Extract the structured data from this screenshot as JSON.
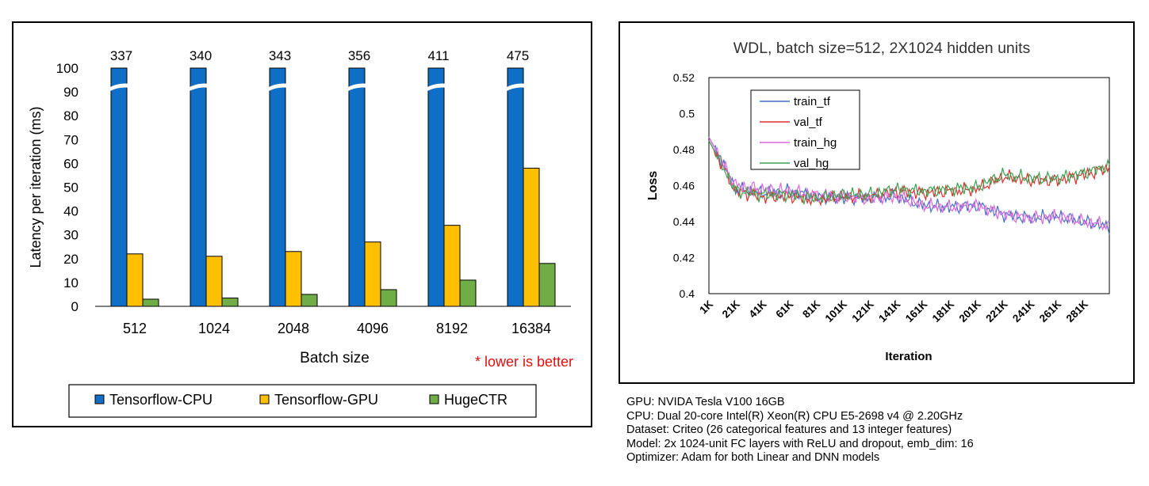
{
  "bar_chart": {
    "ylabel": "Latency per iteration (ms)",
    "xlabel": "Batch size",
    "note": "* lower is better",
    "yticks": [
      "0",
      "10",
      "20",
      "30",
      "40",
      "50",
      "60",
      "70",
      "80",
      "90",
      "100"
    ],
    "legend": [
      "Tensorflow-CPU",
      "Tensorflow-GPU",
      "HugeCTR"
    ]
  },
  "loss_chart": {
    "title": "WDL, batch size=512, 2X1024 hidden units",
    "ylabel": "Loss",
    "xlabel": "Iteration",
    "yticks": [
      "0.4",
      "0.42",
      "0.44",
      "0.46",
      "0.48",
      "0.5",
      "0.52"
    ],
    "xticks": [
      "1K",
      "21K",
      "41K",
      "61K",
      "81K",
      "101K",
      "121K",
      "141K",
      "161K",
      "181K",
      "201K",
      "221K",
      "241K",
      "261K",
      "281K"
    ],
    "legend": [
      "train_tf",
      "val_tf",
      "train_hg",
      "val_hg"
    ]
  },
  "notes": {
    "gpu": "GPU: NVIDA Tesla V100 16GB",
    "cpu": "CPU: Dual 20-core Intel(R) Xeon(R) CPU E5-2698 v4 @ 2.20GHz",
    "dataset": "Dataset: Criteo (26 categorical features and 13 integer features)",
    "model": "Model: 2x 1024-unit FC layers with ReLU and dropout, emb_dim: 16",
    "optimizer": "Optimizer: Adam for both Linear and DNN models"
  },
  "chart_data": [
    {
      "type": "bar",
      "title": "",
      "xlabel": "Batch size",
      "ylabel": "Latency per iteration (ms)",
      "ylim": [
        0,
        100
      ],
      "categories": [
        "512",
        "1024",
        "2048",
        "4096",
        "8192",
        "16384"
      ],
      "series": [
        {
          "name": "Tensorflow-CPU",
          "color": "#0f6fc6",
          "values": [
            337,
            340,
            343,
            356,
            411,
            475
          ],
          "labels": [
            "337",
            "340",
            "343",
            "356",
            "411",
            "475"
          ]
        },
        {
          "name": "Tensorflow-GPU",
          "color": "#ffc000",
          "values": [
            22,
            21,
            23,
            27,
            34,
            58
          ]
        },
        {
          "name": "HugeCTR",
          "color": "#70ad47",
          "values": [
            3,
            3.5,
            5,
            7,
            11,
            18
          ]
        }
      ],
      "axis_break": true
    },
    {
      "type": "line",
      "title": "WDL, batch size=512, 2X1024 hidden units",
      "xlabel": "Iteration",
      "ylabel": "Loss",
      "ylim": [
        0.4,
        0.52
      ],
      "xlim": [
        1000,
        300000
      ],
      "x": [
        1000,
        21000,
        41000,
        61000,
        81000,
        101000,
        121000,
        141000,
        161000,
        181000,
        201000,
        221000,
        241000,
        261000,
        281000,
        300000
      ],
      "series": [
        {
          "name": "train_tf",
          "color": "#4472c4",
          "values": [
            0.487,
            0.458,
            0.456,
            0.457,
            0.454,
            0.453,
            0.453,
            0.454,
            0.449,
            0.448,
            0.449,
            0.444,
            0.442,
            0.443,
            0.44,
            0.437
          ]
        },
        {
          "name": "val_tf",
          "color": "#e03030",
          "values": [
            0.485,
            0.457,
            0.454,
            0.454,
            0.452,
            0.454,
            0.454,
            0.457,
            0.456,
            0.457,
            0.458,
            0.465,
            0.463,
            0.463,
            0.466,
            0.47
          ]
        },
        {
          "name": "train_hg",
          "color": "#e066e0",
          "values": [
            0.487,
            0.46,
            0.458,
            0.457,
            0.455,
            0.454,
            0.453,
            0.454,
            0.449,
            0.448,
            0.449,
            0.444,
            0.442,
            0.443,
            0.44,
            0.438
          ]
        },
        {
          "name": "val_hg",
          "color": "#3aa351",
          "values": [
            0.485,
            0.457,
            0.455,
            0.455,
            0.453,
            0.455,
            0.455,
            0.458,
            0.457,
            0.458,
            0.459,
            0.466,
            0.464,
            0.464,
            0.467,
            0.471
          ]
        }
      ]
    }
  ]
}
